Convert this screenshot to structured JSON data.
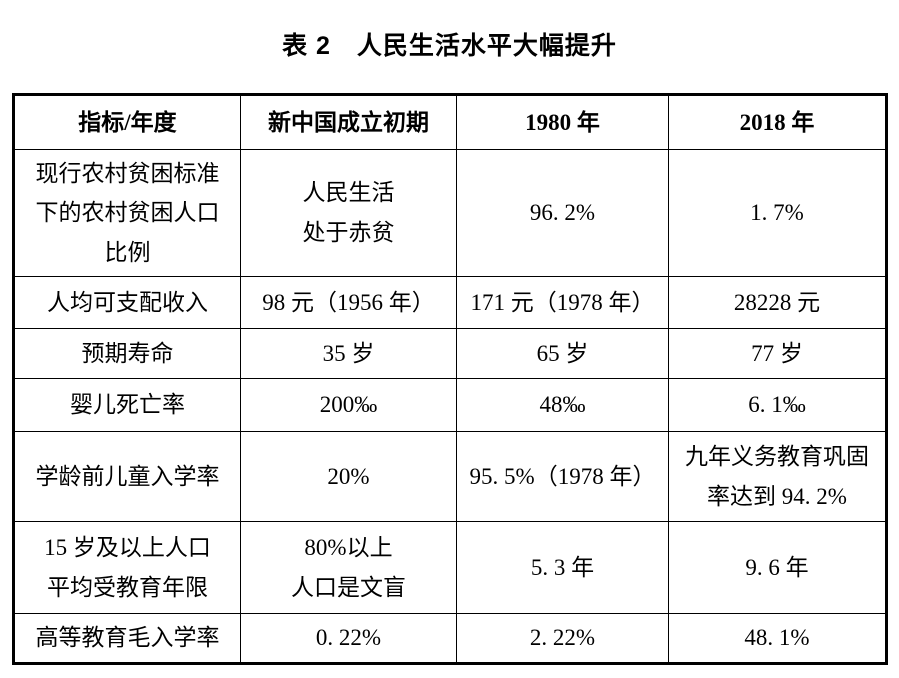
{
  "page": {
    "background_color": "#ffffff",
    "text_color": "#000000",
    "border_color": "#000000"
  },
  "title": "表 2　人民生活水平大幅提升",
  "chart_data": {
    "type": "table",
    "title": "表 2　人民生活水平大幅提升",
    "columns": [
      "指标/年度",
      "新中国成立初期",
      "1980 年",
      "2018 年"
    ],
    "rows": [
      [
        "现行农村贫困标准下的农村贫困人口比例",
        "人民生活处于赤贫",
        "96. 2%",
        "1. 7%"
      ],
      [
        "人均可支配收入",
        "98 元（1956 年）",
        "171 元（1978 年）",
        "28228 元"
      ],
      [
        "预期寿命",
        "35 岁",
        "65 岁",
        "77 岁"
      ],
      [
        "婴儿死亡率",
        "200‰",
        "48‰",
        "6. 1‰"
      ],
      [
        "学龄前儿童入学率",
        "20%",
        "95. 5%（1978 年）",
        "九年义务教育巩固率达到 94. 2%"
      ],
      [
        "15 岁及以上人口平均受教育年限",
        "80%以上人口是文盲",
        "5. 3 年",
        "9. 6 年"
      ],
      [
        "高等教育毛入学率",
        "0. 22%",
        "2. 22%",
        "48. 1%"
      ]
    ]
  },
  "table": {
    "headers": [
      "指标/年度",
      "新中国成立初期",
      "1980 年",
      "2018 年"
    ],
    "rows": [
      {
        "indicator": "现行农村贫困标准\n下的农村贫困人口\n比例",
        "early": "人民生活\n处于赤贫",
        "y1980": "96. 2%",
        "y2018": "1. 7%"
      },
      {
        "indicator": "人均可支配收入",
        "early": "98 元（1956 年）",
        "y1980": "171 元（1978 年）",
        "y2018": "28228 元"
      },
      {
        "indicator": "预期寿命",
        "early": "35 岁",
        "y1980": "65 岁",
        "y2018": "77 岁"
      },
      {
        "indicator": "婴儿死亡率",
        "early": "200‰",
        "y1980": "48‰",
        "y2018": "6. 1‰"
      },
      {
        "indicator": "学龄前儿童入学率",
        "early": "20%",
        "y1980": "95. 5%（1978 年）",
        "y2018": "九年义务教育巩固\n率达到 94. 2%"
      },
      {
        "indicator": "15 岁及以上人口\n平均受教育年限",
        "early": "80%以上\n人口是文盲",
        "y1980": "5. 3 年",
        "y2018": "9. 6 年"
      },
      {
        "indicator": "高等教育毛入学率",
        "early": "0. 22%",
        "y1980": "2. 22%",
        "y2018": "48. 1%"
      }
    ]
  }
}
